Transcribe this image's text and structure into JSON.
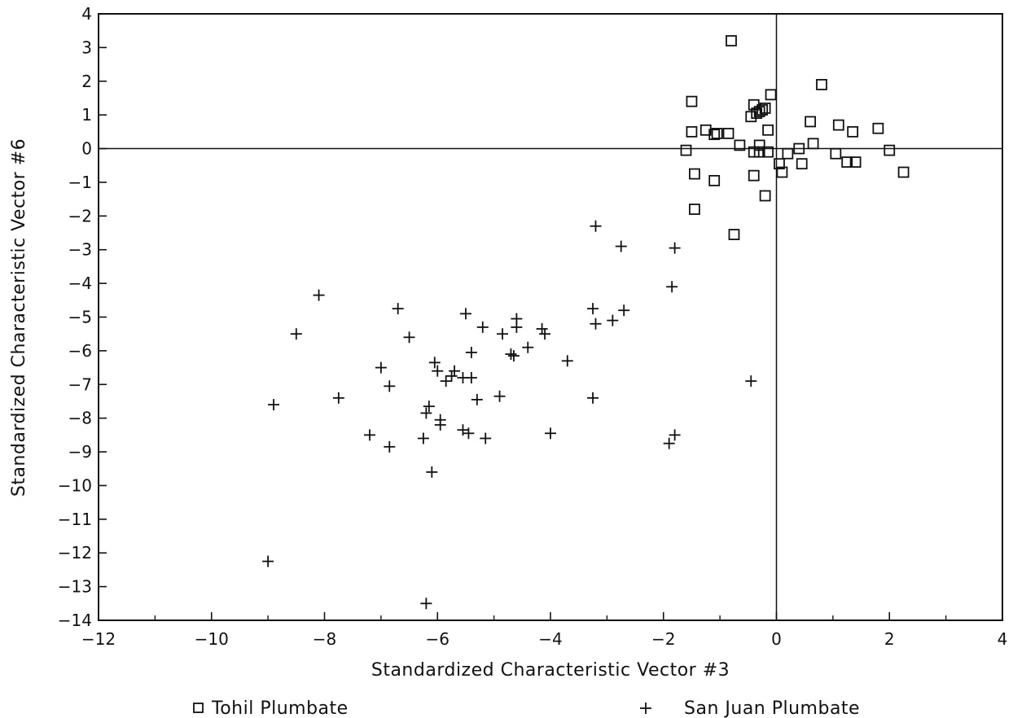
{
  "chart_data": {
    "type": "scatter",
    "xlabel": "Standardized Characteristic Vector #3",
    "ylabel": "Standardized Characteristic Vector #6",
    "xlim": [
      -12,
      4
    ],
    "ylim": [
      -14,
      4
    ],
    "xticks": [
      -12,
      -10,
      -8,
      -6,
      -4,
      -2,
      0,
      2,
      4
    ],
    "yticks": [
      4,
      3,
      2,
      1,
      0,
      -1,
      -2,
      -3,
      -4,
      -5,
      -6,
      -7,
      -8,
      -9,
      -10,
      -11,
      -12,
      -13,
      -14
    ],
    "reference_lines": {
      "x": 0,
      "y": 0
    },
    "grid": false,
    "legend_position": "bottom",
    "series": [
      {
        "name": "Tohil Plumbate",
        "marker": "square",
        "points": [
          [
            -0.8,
            3.2
          ],
          [
            0.8,
            1.9
          ],
          [
            -0.1,
            1.6
          ],
          [
            -1.5,
            1.4
          ],
          [
            -0.4,
            1.3
          ],
          [
            -0.3,
            1.1
          ],
          [
            -0.25,
            1.15
          ],
          [
            -0.35,
            1.05
          ],
          [
            -0.2,
            1.2
          ],
          [
            -0.45,
            0.95
          ],
          [
            0.6,
            0.8
          ],
          [
            1.1,
            0.7
          ],
          [
            -1.25,
            0.55
          ],
          [
            -1.5,
            0.5
          ],
          [
            -0.15,
            0.55
          ],
          [
            -0.85,
            0.45
          ],
          [
            -1.05,
            0.45
          ],
          [
            -1.1,
            0.42
          ],
          [
            1.35,
            0.5
          ],
          [
            1.8,
            0.6
          ],
          [
            -0.65,
            0.1
          ],
          [
            0.65,
            0.15
          ],
          [
            -0.3,
            0.1
          ],
          [
            -1.6,
            -0.05
          ],
          [
            0.4,
            0.0
          ],
          [
            2.0,
            -0.05
          ],
          [
            -0.4,
            -0.1
          ],
          [
            -0.3,
            -0.1
          ],
          [
            -0.15,
            -0.1
          ],
          [
            0.2,
            -0.15
          ],
          [
            1.05,
            -0.15
          ],
          [
            0.05,
            -0.45
          ],
          [
            0.45,
            -0.45
          ],
          [
            1.25,
            -0.4
          ],
          [
            1.4,
            -0.4
          ],
          [
            0.1,
            -0.7
          ],
          [
            2.25,
            -0.7
          ],
          [
            -1.45,
            -0.75
          ],
          [
            -0.4,
            -0.8
          ],
          [
            -1.1,
            -0.95
          ],
          [
            -0.2,
            -1.4
          ],
          [
            -1.45,
            -1.8
          ],
          [
            -0.75,
            -2.55
          ]
        ]
      },
      {
        "name": "San Juan Plumbate",
        "marker": "plus",
        "points": [
          [
            -3.2,
            -2.3
          ],
          [
            -2.75,
            -2.9
          ],
          [
            -1.8,
            -2.95
          ],
          [
            -1.85,
            -4.1
          ],
          [
            -8.1,
            -4.35
          ],
          [
            -6.7,
            -4.75
          ],
          [
            -3.25,
            -4.75
          ],
          [
            -2.7,
            -4.8
          ],
          [
            -5.5,
            -4.9
          ],
          [
            -4.6,
            -5.05
          ],
          [
            -2.9,
            -5.1
          ],
          [
            -3.2,
            -5.2
          ],
          [
            -5.2,
            -5.3
          ],
          [
            -4.6,
            -5.3
          ],
          [
            -4.15,
            -5.35
          ],
          [
            -8.5,
            -5.5
          ],
          [
            -4.85,
            -5.5
          ],
          [
            -4.1,
            -5.5
          ],
          [
            -6.5,
            -5.6
          ],
          [
            -4.4,
            -5.9
          ],
          [
            -5.4,
            -6.05
          ],
          [
            -4.7,
            -6.1
          ],
          [
            -4.65,
            -6.15
          ],
          [
            -3.7,
            -6.3
          ],
          [
            -6.05,
            -6.35
          ],
          [
            -7.0,
            -6.5
          ],
          [
            -6.0,
            -6.6
          ],
          [
            -5.7,
            -6.6
          ],
          [
            -5.75,
            -6.75
          ],
          [
            -5.55,
            -6.8
          ],
          [
            -5.4,
            -6.8
          ],
          [
            -5.85,
            -6.9
          ],
          [
            -6.85,
            -7.05
          ],
          [
            -4.9,
            -7.35
          ],
          [
            -3.25,
            -7.4
          ],
          [
            -7.75,
            -7.4
          ],
          [
            -5.3,
            -7.45
          ],
          [
            -8.9,
            -7.6
          ],
          [
            -6.15,
            -7.65
          ],
          [
            -6.2,
            -7.85
          ],
          [
            -5.95,
            -8.05
          ],
          [
            -5.95,
            -8.2
          ],
          [
            -5.55,
            -8.35
          ],
          [
            -5.45,
            -8.45
          ],
          [
            -7.2,
            -8.5
          ],
          [
            -4.0,
            -8.45
          ],
          [
            -1.8,
            -8.5
          ],
          [
            -6.25,
            -8.6
          ],
          [
            -5.15,
            -8.6
          ],
          [
            -1.9,
            -8.75
          ],
          [
            -6.85,
            -8.85
          ],
          [
            -6.1,
            -9.6
          ],
          [
            -0.45,
            -6.9
          ],
          [
            -9.0,
            -12.25
          ],
          [
            -6.2,
            -13.5
          ]
        ]
      }
    ]
  },
  "legend": {
    "tohil_label": "Tohil Plumbate",
    "sanjuan_label": "San Juan Plumbate"
  }
}
